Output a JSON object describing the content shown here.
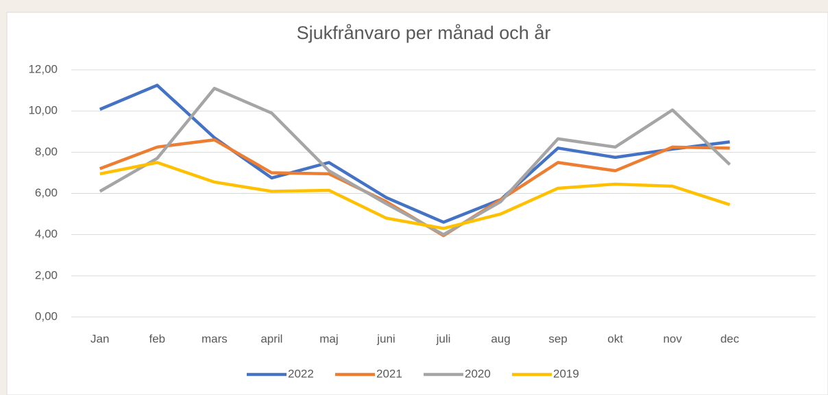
{
  "chart_data": {
    "type": "line",
    "title": "Sjukfrånvaro per månad och år",
    "categories": [
      "Jan",
      "feb",
      "mars",
      "april",
      "maj",
      "juni",
      "juli",
      "aug",
      "sep",
      "okt",
      "nov",
      "dec"
    ],
    "series": [
      {
        "name": "2022",
        "color": "#4472c4",
        "values": [
          10.08,
          11.25,
          8.7,
          6.75,
          7.5,
          5.8,
          4.6,
          5.7,
          8.2,
          7.75,
          8.15,
          8.5
        ]
      },
      {
        "name": "2021",
        "color": "#ed7d31",
        "values": [
          7.2,
          8.25,
          8.6,
          7.0,
          6.95,
          5.6,
          3.95,
          5.7,
          7.5,
          7.1,
          8.25,
          8.2
        ]
      },
      {
        "name": "2020",
        "color": "#a5a5a5",
        "values": [
          6.1,
          7.7,
          11.1,
          9.9,
          7.1,
          5.5,
          4.0,
          5.6,
          8.65,
          8.25,
          10.05,
          7.4
        ]
      },
      {
        "name": "2019",
        "color": "#ffc000",
        "values": [
          6.95,
          7.5,
          6.55,
          6.1,
          6.15,
          4.8,
          4.3,
          5.0,
          6.25,
          6.45,
          6.35,
          5.45
        ]
      }
    ],
    "ylim": [
      0,
      12
    ],
    "yticks": [
      {
        "value": 0,
        "label": "0,00"
      },
      {
        "value": 2,
        "label": "2,00"
      },
      {
        "value": 4,
        "label": "4,00"
      },
      {
        "value": 6,
        "label": "6,00"
      },
      {
        "value": 8,
        "label": "8,00"
      },
      {
        "value": 10,
        "label": "10,00"
      },
      {
        "value": 12,
        "label": "12,00"
      }
    ],
    "grid": true,
    "legend": "bottom"
  }
}
